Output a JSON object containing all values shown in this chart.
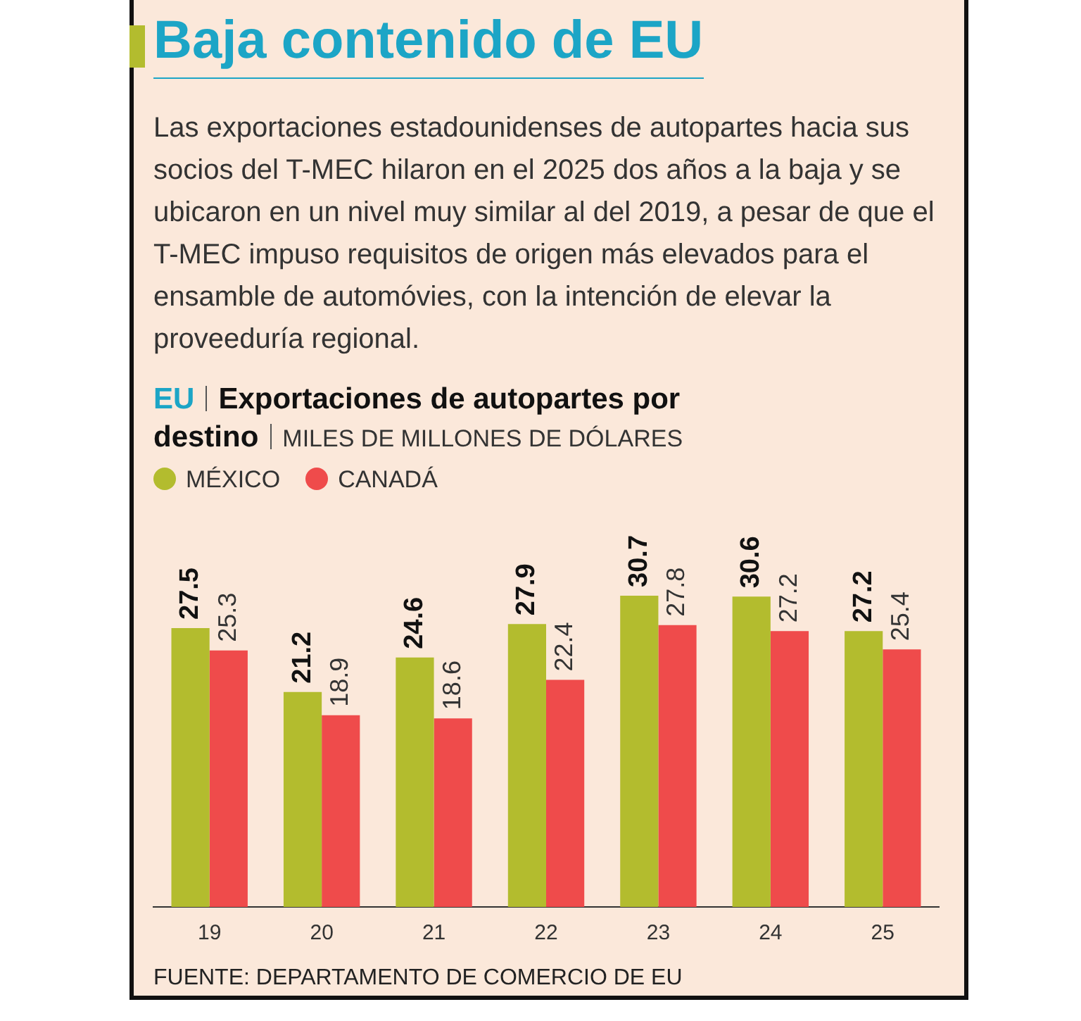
{
  "chart_data": {
    "type": "bar",
    "title": "Baja contenido de EU",
    "subtitle": "Las exportaciones estadounidenses de autopartes hacia sus socios del T-MEC hilaron en el 2025 dos años a la baja y se ubicaron en un nivel muy similar al del 2019, a pesar de que el T-MEC impuso requisitos de origen más elevados para el ensamble de automóvies, con la intención de elevar la proveeduría regional.",
    "annotations": [
      "EU",
      "Exportaciones de autopartes por destino",
      "MILES DE MILLONES DE DÓLARES",
      "FUENTE: DEPARTAMENTO DE COMERCIO DE EU"
    ],
    "categories": [
      "19",
      "20",
      "21",
      "22",
      "23",
      "24",
      "25"
    ],
    "series": [
      {
        "name": "MÉXICO",
        "color": "#b3bc2e",
        "values": [
          27.5,
          21.2,
          24.6,
          27.9,
          30.7,
          30.6,
          27.2
        ]
      },
      {
        "name": "CANADÁ",
        "color": "#ef4b4b",
        "values": [
          25.3,
          18.9,
          18.6,
          22.4,
          27.8,
          27.2,
          25.4
        ]
      }
    ],
    "data_labels": true,
    "legend": "top left",
    "grid": false
  }
}
